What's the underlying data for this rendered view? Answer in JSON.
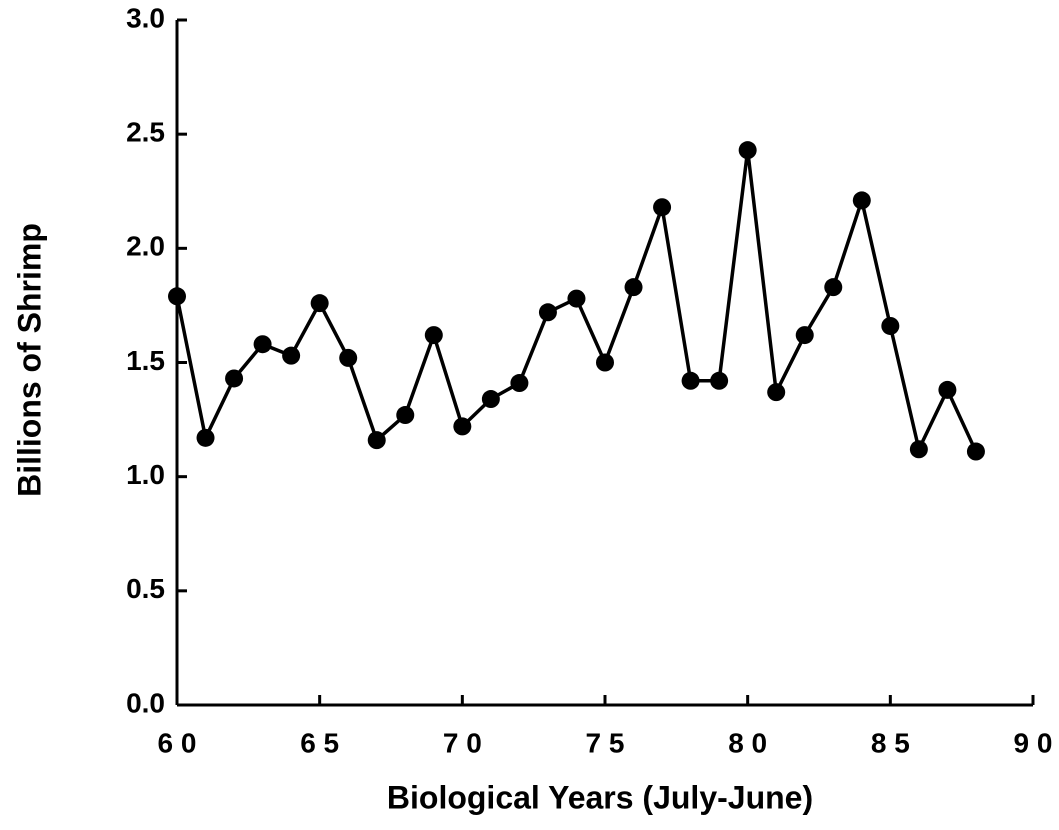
{
  "chart_data": {
    "type": "line",
    "xlabel": "Biological Years (July-June)",
    "ylabel": "Billions of Shrimp",
    "x": [
      60,
      61,
      62,
      63,
      64,
      65,
      66,
      67,
      68,
      69,
      70,
      71,
      72,
      73,
      74,
      75,
      76,
      77,
      78,
      79,
      80,
      81,
      82,
      83,
      84,
      85,
      86,
      87,
      88
    ],
    "series": [
      {
        "color": "#000000",
        "values": [
          1.79,
          1.17,
          1.43,
          1.58,
          1.53,
          1.76,
          1.52,
          1.16,
          1.27,
          1.62,
          1.22,
          1.34,
          1.41,
          1.72,
          1.78,
          1.5,
          1.83,
          2.18,
          1.42,
          1.42,
          2.43,
          1.37,
          1.62,
          1.83,
          2.21,
          1.66,
          1.12,
          1.38,
          1.11
        ]
      }
    ],
    "xlim": [
      60,
      90
    ],
    "xticks": [
      {
        "value": 60,
        "label": "6 0"
      },
      {
        "value": 65,
        "label": "6 5"
      },
      {
        "value": 70,
        "label": "7 0"
      },
      {
        "value": 75,
        "label": "7 5"
      },
      {
        "value": 80,
        "label": "8 0"
      },
      {
        "value": 85,
        "label": "8 5"
      },
      {
        "value": 90,
        "label": "9 0"
      }
    ],
    "ylim": [
      0,
      3
    ],
    "yticks": [
      {
        "value": 0,
        "label": "0.0"
      },
      0.5,
      {
        "value": 1,
        "label": "1.0"
      },
      1.5,
      {
        "value": 2,
        "label": "2.0"
      },
      2.5,
      {
        "value": 3,
        "label": "3.0"
      }
    ],
    "grid": false
  }
}
